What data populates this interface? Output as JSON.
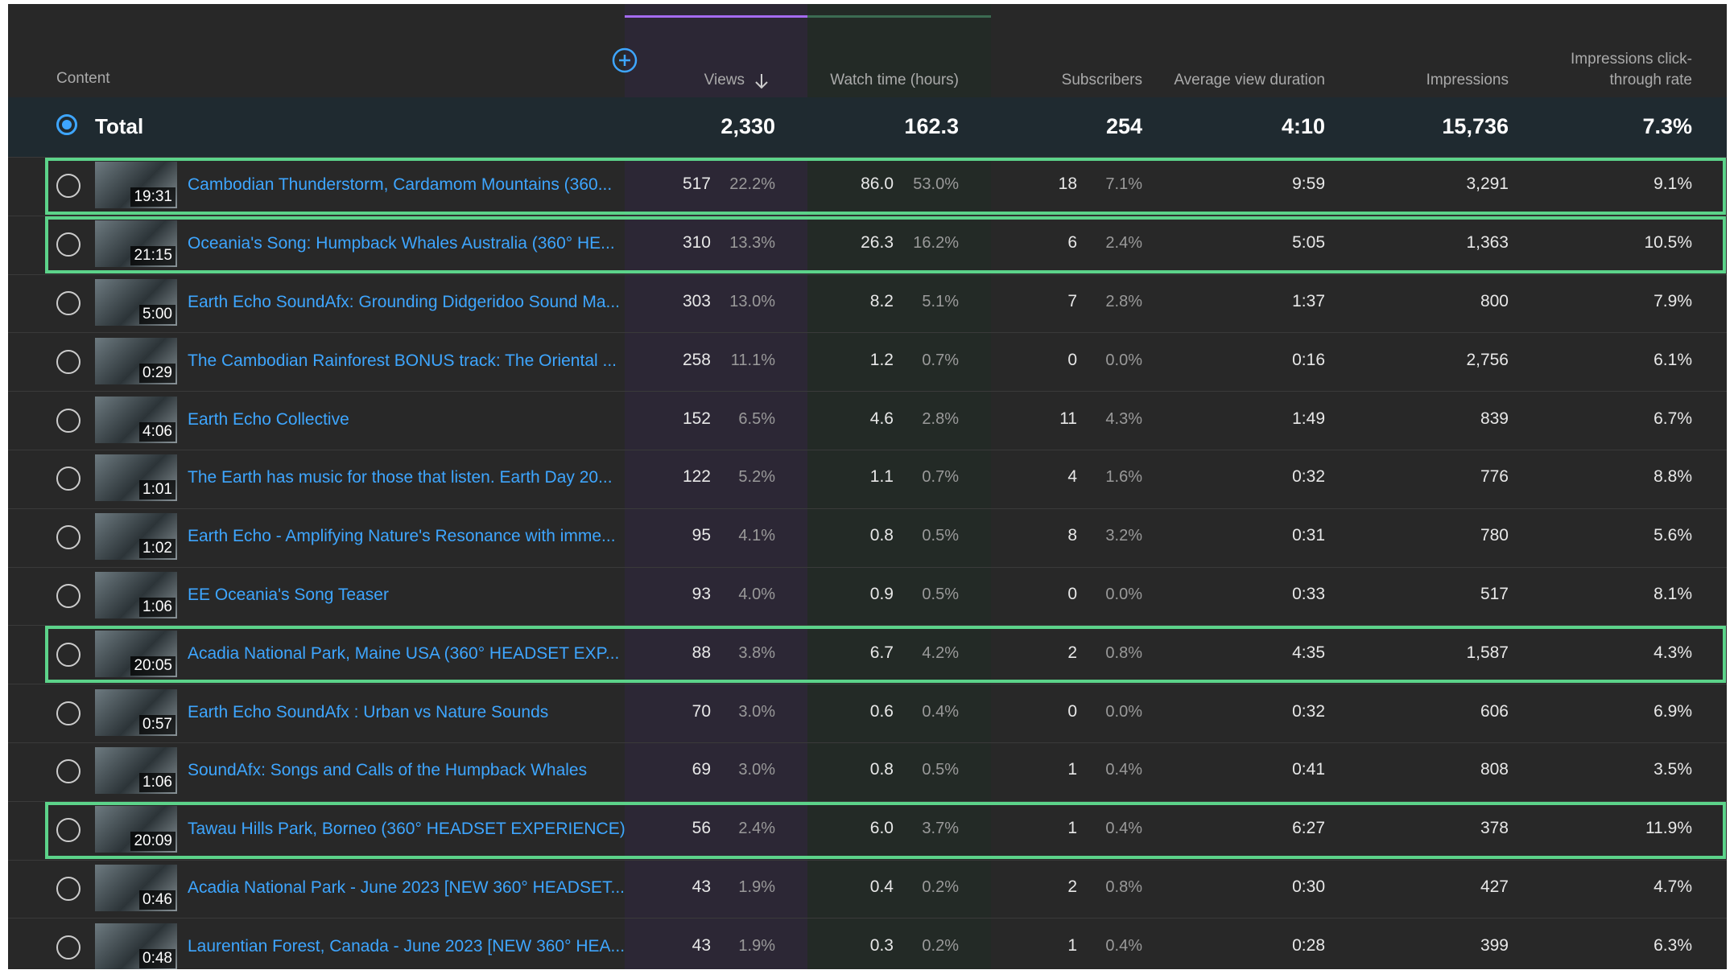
{
  "header": {
    "columns": [
      "Content",
      "Views",
      "Watch time (hours)",
      "Subscribers",
      "Average view duration",
      "Impressions",
      "Impressions click-through rate"
    ]
  },
  "total": {
    "label": "Total",
    "values": [
      "2,330",
      "162.3",
      "254",
      "4:10",
      "15,736",
      "7.3%"
    ]
  },
  "rows": [
    {
      "duration": "19:31",
      "title": "Cambodian Thunderstorm, Cardamom Mountains (360...",
      "views": "517",
      "views_pct": "22.2%",
      "watch_time": "86.0",
      "watch_time_pct": "53.0%",
      "subscribers": "18",
      "subscribers_pct": "7.1%",
      "avg_view_duration": "9:59",
      "impressions": "3,291",
      "ctr": "9.1%",
      "highlighted": true
    },
    {
      "duration": "21:15",
      "title": "Oceania's Song: Humpback Whales Australia (360° HE...",
      "views": "310",
      "views_pct": "13.3%",
      "watch_time": "26.3",
      "watch_time_pct": "16.2%",
      "subscribers": "6",
      "subscribers_pct": "2.4%",
      "avg_view_duration": "5:05",
      "impressions": "1,363",
      "ctr": "10.5%",
      "highlighted": true
    },
    {
      "duration": "5:00",
      "title": "Earth Echo SoundAfx: Grounding Didgeridoo Sound Ma...",
      "views": "303",
      "views_pct": "13.0%",
      "watch_time": "8.2",
      "watch_time_pct": "5.1%",
      "subscribers": "7",
      "subscribers_pct": "2.8%",
      "avg_view_duration": "1:37",
      "impressions": "800",
      "ctr": "7.9%",
      "highlighted": false
    },
    {
      "duration": "0:29",
      "title": "The Cambodian Rainforest BONUS track: The Oriental ...",
      "views": "258",
      "views_pct": "11.1%",
      "watch_time": "1.2",
      "watch_time_pct": "0.7%",
      "subscribers": "0",
      "subscribers_pct": "0.0%",
      "avg_view_duration": "0:16",
      "impressions": "2,756",
      "ctr": "6.1%",
      "highlighted": false
    },
    {
      "duration": "4:06",
      "title": "Earth Echo Collective",
      "views": "152",
      "views_pct": "6.5%",
      "watch_time": "4.6",
      "watch_time_pct": "2.8%",
      "subscribers": "11",
      "subscribers_pct": "4.3%",
      "avg_view_duration": "1:49",
      "impressions": "839",
      "ctr": "6.7%",
      "highlighted": false
    },
    {
      "duration": "1:01",
      "title": "The Earth has music for those that listen. Earth Day 20...",
      "views": "122",
      "views_pct": "5.2%",
      "watch_time": "1.1",
      "watch_time_pct": "0.7%",
      "subscribers": "4",
      "subscribers_pct": "1.6%",
      "avg_view_duration": "0:32",
      "impressions": "776",
      "ctr": "8.8%",
      "highlighted": false
    },
    {
      "duration": "1:02",
      "title": "Earth Echo - Amplifying Nature's Resonance with imme...",
      "views": "95",
      "views_pct": "4.1%",
      "watch_time": "0.8",
      "watch_time_pct": "0.5%",
      "subscribers": "8",
      "subscribers_pct": "3.2%",
      "avg_view_duration": "0:31",
      "impressions": "780",
      "ctr": "5.6%",
      "highlighted": false
    },
    {
      "duration": "1:06",
      "title": "EE Oceania's Song Teaser",
      "views": "93",
      "views_pct": "4.0%",
      "watch_time": "0.9",
      "watch_time_pct": "0.5%",
      "subscribers": "0",
      "subscribers_pct": "0.0%",
      "avg_view_duration": "0:33",
      "impressions": "517",
      "ctr": "8.1%",
      "highlighted": false
    },
    {
      "duration": "20:05",
      "title": "Acadia National Park, Maine USA (360° HEADSET EXP...",
      "views": "88",
      "views_pct": "3.8%",
      "watch_time": "6.7",
      "watch_time_pct": "4.2%",
      "subscribers": "2",
      "subscribers_pct": "0.8%",
      "avg_view_duration": "4:35",
      "impressions": "1,587",
      "ctr": "4.3%",
      "highlighted": true
    },
    {
      "duration": "0:57",
      "title": "Earth Echo SoundAfx : Urban vs Nature Sounds",
      "views": "70",
      "views_pct": "3.0%",
      "watch_time": "0.6",
      "watch_time_pct": "0.4%",
      "subscribers": "0",
      "subscribers_pct": "0.0%",
      "avg_view_duration": "0:32",
      "impressions": "606",
      "ctr": "6.9%",
      "highlighted": false
    },
    {
      "duration": "1:06",
      "title": "SoundAfx: Songs and Calls of the Humpback Whales",
      "views": "69",
      "views_pct": "3.0%",
      "watch_time": "0.8",
      "watch_time_pct": "0.5%",
      "subscribers": "1",
      "subscribers_pct": "0.4%",
      "avg_view_duration": "0:41",
      "impressions": "808",
      "ctr": "3.5%",
      "highlighted": false
    },
    {
      "duration": "20:09",
      "title": "Tawau Hills Park, Borneo (360° HEADSET EXPERIENCE)",
      "views": "56",
      "views_pct": "2.4%",
      "watch_time": "6.0",
      "watch_time_pct": "3.7%",
      "subscribers": "1",
      "subscribers_pct": "0.4%",
      "avg_view_duration": "6:27",
      "impressions": "378",
      "ctr": "11.9%",
      "highlighted": true
    },
    {
      "duration": "0:46",
      "title": "Acadia National Park - June 2023 [NEW 360° HEADSET...",
      "views": "43",
      "views_pct": "1.9%",
      "watch_time": "0.4",
      "watch_time_pct": "0.2%",
      "subscribers": "2",
      "subscribers_pct": "0.8%",
      "avg_view_duration": "0:30",
      "impressions": "427",
      "ctr": "4.7%",
      "highlighted": false
    },
    {
      "duration": "0:48",
      "title": "Laurentian Forest, Canada - June 2023 [NEW 360° HEA...",
      "views": "43",
      "views_pct": "1.9%",
      "watch_time": "0.3",
      "watch_time_pct": "0.2%",
      "subscribers": "1",
      "subscribers_pct": "0.4%",
      "avg_view_duration": "0:28",
      "impressions": "399",
      "ctr": "6.3%",
      "highlighted": false
    }
  ]
}
